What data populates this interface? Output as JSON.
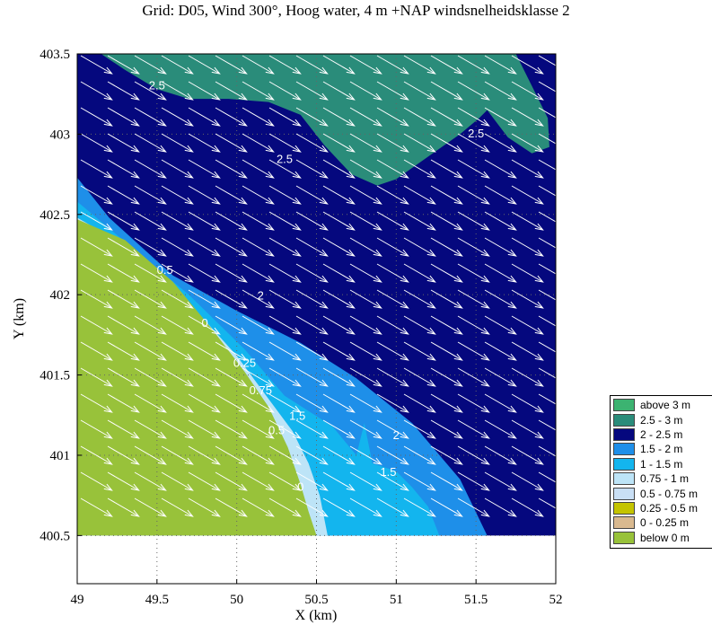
{
  "chart_data": {
    "type": "contour map",
    "title": "Grid: D05, Wind 300°, Hoog water, 4 m +NAP windsnelheidsklasse 2",
    "xlabel": "X (km)",
    "ylabel": "Y (km)",
    "xlim": [
      49,
      52
    ],
    "ylim": [
      400.5,
      403.5
    ],
    "xticks": [
      "49",
      "49.5",
      "50",
      "50.5",
      "51",
      "51.5",
      "52"
    ],
    "yticks": [
      "400.5",
      "401",
      "401.5",
      "402",
      "402.5",
      "403",
      "403.5"
    ],
    "plot_ylim": [
      400.2,
      403.5
    ],
    "grid": "dotted",
    "legend_position": "right",
    "legend": [
      {
        "label": "above 3 m",
        "color": "#3cb371"
      },
      {
        "label": "2.5 - 3 m",
        "color": "#2a8c7a"
      },
      {
        "label": "2 - 2.5 m",
        "color": "#05087e"
      },
      {
        "label": "1.5 - 2 m",
        "color": "#1e8fe9"
      },
      {
        "label": "1 - 1.5 m",
        "color": "#13b5ee"
      },
      {
        "label": "0.75 - 1 m",
        "color": "#bde4f7"
      },
      {
        "label": "0.5 - 0.75 m",
        "color": "#c9dff5"
      },
      {
        "label": "0.25 - 0.5 m",
        "color": "#c4c400"
      },
      {
        "label": "0 - 0.25 m",
        "color": "#d9b98f"
      },
      {
        "label": "below 0 m",
        "color": "#98c23a"
      }
    ],
    "regions": [
      {
        "class": "2 - 2.5 m",
        "polygon": [
          [
            49,
            400.5
          ],
          [
            52,
            400.5
          ],
          [
            52,
            403.5
          ],
          [
            49,
            403.5
          ]
        ]
      },
      {
        "class": "1.5 - 2 m",
        "polygon": [
          [
            49,
            402.73
          ],
          [
            49.2,
            402.48
          ],
          [
            49.6,
            402.12
          ],
          [
            50.0,
            401.9
          ],
          [
            50.4,
            401.7
          ],
          [
            50.75,
            401.48
          ],
          [
            51.1,
            401.2
          ],
          [
            51.4,
            400.85
          ],
          [
            51.57,
            400.5
          ],
          [
            49,
            400.5
          ]
        ]
      },
      {
        "class": "1 - 1.5 m",
        "polygon": [
          [
            49,
            402.58
          ],
          [
            49.3,
            402.33
          ],
          [
            49.7,
            402.0
          ],
          [
            50.05,
            401.66
          ],
          [
            50.3,
            401.37
          ],
          [
            50.6,
            401.18
          ],
          [
            50.75,
            401.0
          ],
          [
            50.8,
            401.2
          ],
          [
            50.85,
            400.95
          ],
          [
            51.0,
            400.9
          ],
          [
            51.1,
            400.8
          ],
          [
            51.2,
            400.68
          ],
          [
            51.27,
            400.5
          ],
          [
            49,
            400.5
          ]
        ]
      },
      {
        "class": "0.75 - 1 m",
        "polygon": [
          [
            49,
            402.48
          ],
          [
            49.35,
            402.28
          ],
          [
            49.7,
            401.95
          ],
          [
            50.0,
            401.62
          ],
          [
            50.2,
            401.35
          ],
          [
            50.35,
            401.15
          ],
          [
            50.45,
            400.95
          ],
          [
            50.52,
            400.75
          ],
          [
            50.57,
            400.5
          ],
          [
            49,
            400.5
          ]
        ]
      },
      {
        "class": "below 0 m",
        "polygon": [
          [
            49,
            402.47
          ],
          [
            49.3,
            402.34
          ],
          [
            49.6,
            402.08
          ],
          [
            49.85,
            401.78
          ],
          [
            50.05,
            401.52
          ],
          [
            50.2,
            401.3
          ],
          [
            50.32,
            401.05
          ],
          [
            50.4,
            400.82
          ],
          [
            50.45,
            400.65
          ],
          [
            50.5,
            400.5
          ],
          [
            49,
            400.5
          ]
        ]
      },
      {
        "class": "2.5 - 3 m",
        "polygon": [
          [
            49.15,
            403.5
          ],
          [
            51.75,
            403.5
          ],
          [
            51.85,
            403.3
          ],
          [
            51.95,
            403.1
          ],
          [
            51.96,
            402.92
          ],
          [
            51.85,
            402.88
          ],
          [
            51.7,
            402.98
          ],
          [
            51.57,
            403.15
          ],
          [
            51.52,
            403.1
          ],
          [
            51.4,
            403.0
          ],
          [
            51.2,
            402.86
          ],
          [
            51.0,
            402.72
          ],
          [
            50.88,
            402.68
          ],
          [
            50.72,
            402.75
          ],
          [
            50.55,
            402.93
          ],
          [
            50.4,
            403.12
          ],
          [
            50.2,
            403.2
          ],
          [
            49.95,
            403.22
          ],
          [
            49.7,
            403.22
          ],
          [
            49.5,
            403.28
          ],
          [
            49.3,
            403.4
          ]
        ]
      }
    ],
    "contour_labels": [
      {
        "text": "2.5",
        "x": 49.5,
        "y": 403.28
      },
      {
        "text": "2.5",
        "x": 51.5,
        "y": 402.98
      },
      {
        "text": "2.5",
        "x": 50.3,
        "y": 402.82
      },
      {
        "text": "0.5",
        "x": 49.55,
        "y": 402.13
      },
      {
        "text": "2",
        "x": 50.15,
        "y": 401.97
      },
      {
        "text": "0",
        "x": 49.8,
        "y": 401.8
      },
      {
        "text": "0.25",
        "x": 50.05,
        "y": 401.55
      },
      {
        "text": "0.75",
        "x": 50.15,
        "y": 401.38
      },
      {
        "text": "1.5",
        "x": 50.38,
        "y": 401.22
      },
      {
        "text": "0.5",
        "x": 50.25,
        "y": 401.13
      },
      {
        "text": "2",
        "x": 51.0,
        "y": 401.1
      },
      {
        "text": "1.5",
        "x": 50.95,
        "y": 400.87
      },
      {
        "text": "0",
        "x": 50.4,
        "y": 400.78
      }
    ],
    "wind_arrows": {
      "direction_deg": 300,
      "color": "#ffffff"
    }
  }
}
